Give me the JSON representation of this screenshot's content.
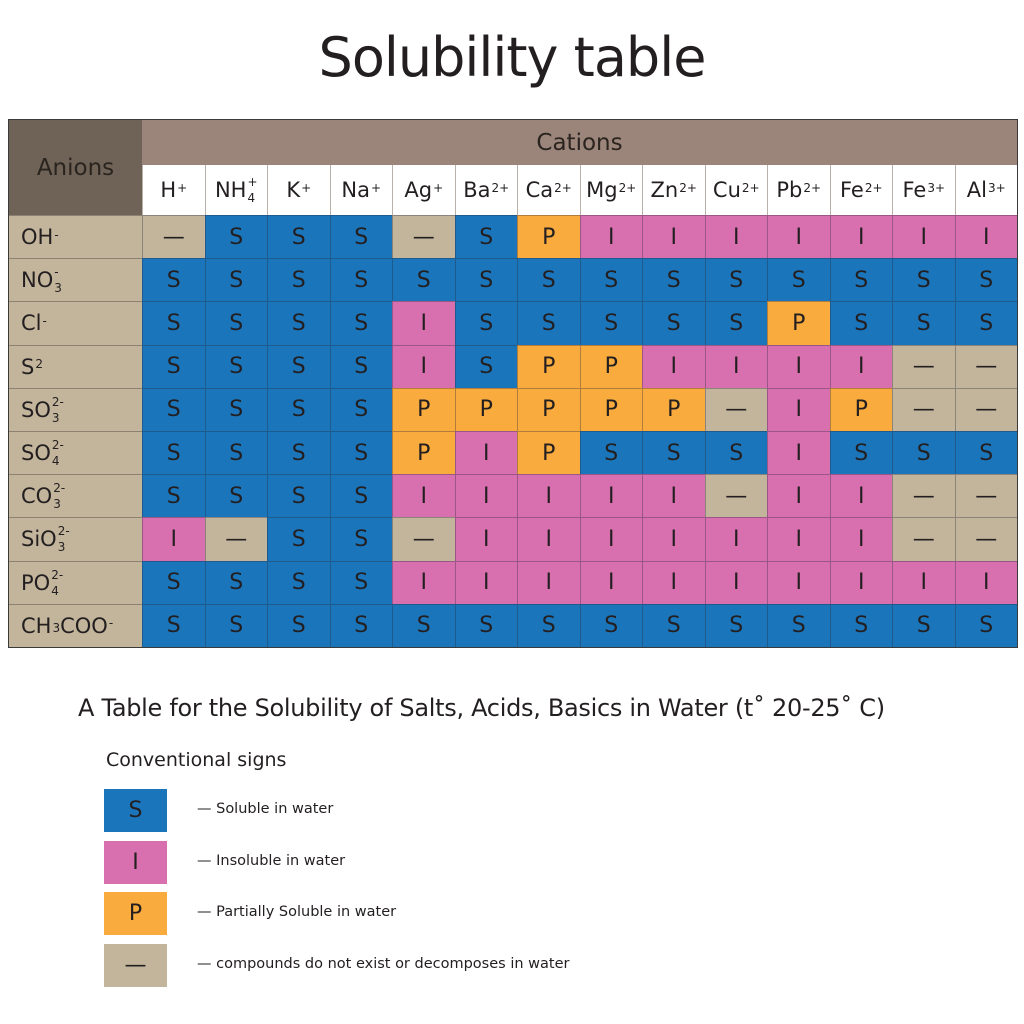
{
  "title": "Solubility table",
  "subtitle": "A Table for the Solubility of Salts, Acids, Basics  in Water (t˚ 20-25˚ C)",
  "colors": {
    "S": "#1b75bb",
    "I": "#d86fae",
    "P": "#f9ab3d",
    "—": "#c2b59b"
  },
  "chart_data": {
    "type": "table",
    "row_header": "Anions",
    "column_header": "Cations",
    "columns": [
      {
        "base": "H",
        "sup": "+",
        "sub": ""
      },
      {
        "base": "NH",
        "sup": "+",
        "sub": "4"
      },
      {
        "base": "K",
        "sup": "+",
        "sub": ""
      },
      {
        "base": "Na",
        "sup": "+",
        "sub": ""
      },
      {
        "base": "Ag",
        "sup": "+",
        "sub": ""
      },
      {
        "base": "Ba",
        "sup": "2+",
        "sub": ""
      },
      {
        "base": "Ca",
        "sup": "2+",
        "sub": ""
      },
      {
        "base": "Mg",
        "sup": "2+",
        "sub": ""
      },
      {
        "base": "Zn",
        "sup": "2+",
        "sub": ""
      },
      {
        "base": "Cu",
        "sup": "2+",
        "sub": ""
      },
      {
        "base": "Pb",
        "sup": "2+",
        "sub": ""
      },
      {
        "base": "Fe",
        "sup": "2+",
        "sub": ""
      },
      {
        "base": "Fe",
        "sup": "3+",
        "sub": ""
      },
      {
        "base": "Al",
        "sup": "3+",
        "sub": ""
      }
    ],
    "rows": [
      {
        "anion": {
          "base": "OH",
          "sup": "-",
          "sub": ""
        },
        "values": [
          "—",
          "S",
          "S",
          "S",
          "—",
          "S",
          "P",
          "I",
          "I",
          "I",
          "I",
          "I",
          "I",
          "I"
        ]
      },
      {
        "anion": {
          "base": "NO",
          "sup": "-",
          "sub": "3"
        },
        "values": [
          "S",
          "S",
          "S",
          "S",
          "S",
          "S",
          "S",
          "S",
          "S",
          "S",
          "S",
          "S",
          "S",
          "S"
        ]
      },
      {
        "anion": {
          "base": "Cl",
          "sup": "-",
          "sub": ""
        },
        "values": [
          "S",
          "S",
          "S",
          "S",
          "I",
          "S",
          "S",
          "S",
          "S",
          "S",
          "P",
          "S",
          "S",
          "S"
        ]
      },
      {
        "anion": {
          "base": "S",
          "sup": "2",
          "sub": ""
        },
        "values": [
          "S",
          "S",
          "S",
          "S",
          "I",
          "S",
          "P",
          "P",
          "I",
          "I",
          "I",
          "I",
          "—",
          "—"
        ]
      },
      {
        "anion": {
          "base": "SO",
          "sup": "2-",
          "sub": "3"
        },
        "values": [
          "S",
          "S",
          "S",
          "S",
          "P",
          "P",
          "P",
          "P",
          "P",
          "—",
          "I",
          "P",
          "—",
          "—"
        ]
      },
      {
        "anion": {
          "base": "SO",
          "sup": "2-",
          "sub": "4"
        },
        "values": [
          "S",
          "S",
          "S",
          "S",
          "P",
          "I",
          "P",
          "S",
          "S",
          "S",
          "I",
          "S",
          "S",
          "S"
        ]
      },
      {
        "anion": {
          "base": "CO",
          "sup": "2-",
          "sub": "3"
        },
        "values": [
          "S",
          "S",
          "S",
          "S",
          "I",
          "I",
          "I",
          "I",
          "I",
          "—",
          "I",
          "I",
          "—",
          "—"
        ]
      },
      {
        "anion": {
          "base": "SiO",
          "sup": "2-",
          "sub": "3"
        },
        "values": [
          "I",
          "—",
          "S",
          "S",
          "—",
          "I",
          "I",
          "I",
          "I",
          "I",
          "I",
          "I",
          "—",
          "—"
        ]
      },
      {
        "anion": {
          "base": "PO",
          "sup": "2-",
          "sub": "4"
        },
        "values": [
          "S",
          "S",
          "S",
          "S",
          "I",
          "I",
          "I",
          "I",
          "I",
          "I",
          "I",
          "I",
          "I",
          "I"
        ]
      },
      {
        "anion": {
          "base": "CH",
          "sub": "3",
          "tail": "COO",
          "sup": "-"
        },
        "values": [
          "S",
          "S",
          "S",
          "S",
          "S",
          "S",
          "S",
          "S",
          "S",
          "S",
          "S",
          "S",
          "S",
          "S"
        ]
      }
    ]
  },
  "legend": {
    "title": "Conventional signs",
    "items": [
      {
        "symbol": "S",
        "label": "— Soluble in water"
      },
      {
        "symbol": "I",
        "label": "— Insoluble in water"
      },
      {
        "symbol": "P",
        "label": "— Partially Soluble in water"
      },
      {
        "symbol": "—",
        "label": "— compounds do not exist or decomposes in water"
      }
    ]
  }
}
